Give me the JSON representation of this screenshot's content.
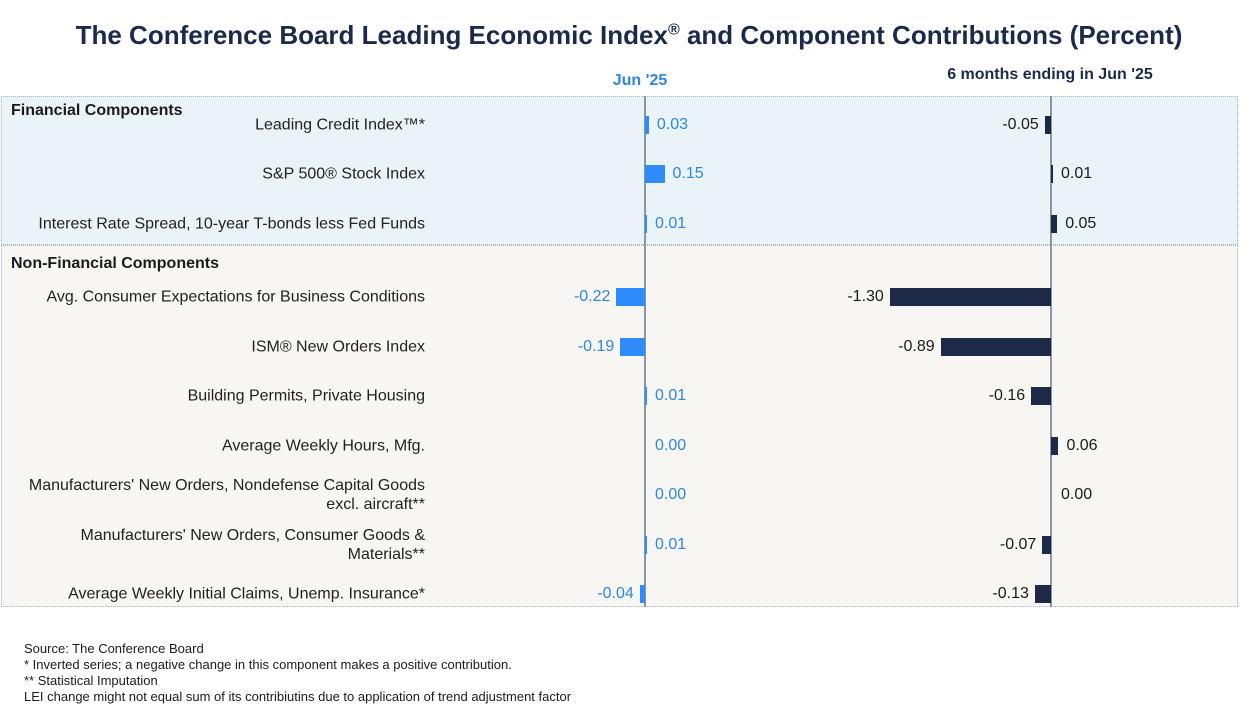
{
  "title": "The Conference Board Leading Economic Index",
  "title_reg": "®",
  "title_tail": " and Component Contributions (Percent)",
  "col_month": "Jun  '25",
  "col_six": "6 months ending in Jun  '25",
  "sections": {
    "financial": "Financial Components",
    "non_financial": "Non-Financial Components"
  },
  "chart_data": {
    "type": "bar",
    "orientation": "horizontal",
    "categories": [
      "Leading Credit Index™*",
      "S&P 500® Stock Index",
      "Interest Rate Spread, 10-year T-bonds less Fed Funds",
      "Avg. Consumer Expectations for Business Conditions",
      "ISM® New Orders Index",
      "Building Permits, Private Housing",
      "Average Weekly Hours, Mfg.",
      "Manufacturers' New Orders, Nondefense Capital Goods excl. aircraft**",
      "Manufacturers' New Orders, Consumer Goods & Materials**",
      "Average Weekly Initial Claims, Unemp. Insurance*"
    ],
    "series": [
      {
        "name": "Jun  '25",
        "color": "#2e8cff",
        "values": [
          0.03,
          0.15,
          0.01,
          -0.22,
          -0.19,
          0.01,
          0.0,
          0.0,
          0.01,
          -0.04
        ],
        "labels": [
          "0.03",
          "0.15",
          "0.01",
          "-0.22",
          "-0.19",
          "0.01",
          "0.00",
          "0.00",
          "0.01",
          "-0.04"
        ]
      },
      {
        "name": "6 months ending in Jun  '25",
        "color": "#1c2a48",
        "values": [
          -0.05,
          0.01,
          0.05,
          -1.3,
          -0.89,
          -0.16,
          0.06,
          0.0,
          -0.07,
          -0.13
        ],
        "labels": [
          "-0.05",
          "0.01",
          "0.05",
          "-1.30",
          "-0.89",
          "-0.16",
          "0.06",
          "0.00",
          "-0.07",
          "-0.13"
        ]
      }
    ],
    "grid": false
  },
  "footnotes": [
    "Source: The Conference Board",
    "*  Inverted series; a negative change in this component makes a positive contribution.",
    "**  Statistical Imputation",
    "LEI change might not equal sum of its contribiutins due to application of trend adjustment factor"
  ]
}
